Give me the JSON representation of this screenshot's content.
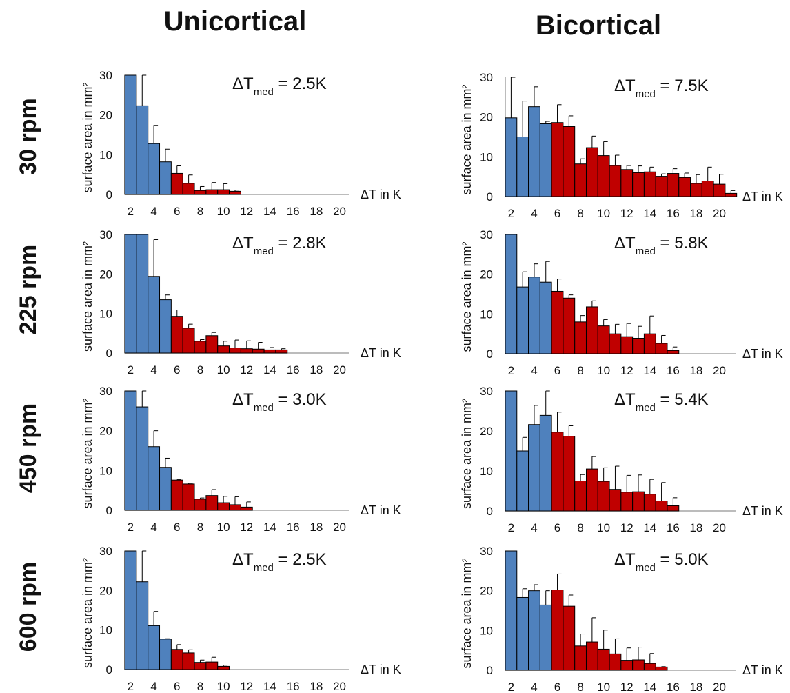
{
  "columns": [
    "Unicortical",
    "Bicortical"
  ],
  "rows": [
    "30 rpm",
    "225 rpm",
    "450 rpm",
    "600 rpm"
  ],
  "colors": {
    "low": "#4f81bd",
    "high": "#c00000",
    "axis": "#a6a6a6",
    "text": "#111111"
  },
  "chart_data": [
    {
      "type": "bar",
      "column": "Unicortical",
      "row": "30 rpm",
      "annotation": {
        "prefix": "ΔT",
        "sub": "med",
        "suffix": " = 2.5K"
      },
      "ylabel": "surface area in mm²",
      "xlabel": "ΔT in K",
      "ylim": [
        0,
        30
      ],
      "yticks": [
        0,
        10,
        20,
        30
      ],
      "xticks": [
        2,
        4,
        6,
        8,
        10,
        12,
        14,
        16,
        18,
        20
      ],
      "x": [
        2,
        3,
        4,
        5,
        6,
        7,
        8,
        9,
        10,
        11
      ],
      "values": [
        30,
        22.3,
        12.8,
        8.2,
        5.3,
        2.8,
        1.0,
        1.2,
        1.2,
        0.8
      ],
      "errors": [
        0,
        8,
        4.5,
        3.2,
        1.9,
        2.1,
        1.0,
        1.8,
        1.5,
        0.3
      ]
    },
    {
      "type": "bar",
      "column": "Bicortical",
      "row": "30 rpm",
      "annotation": {
        "prefix": "ΔT",
        "sub": "med",
        "suffix": " = 7.5K"
      },
      "ylabel": "surface area in mm²",
      "xlabel": "ΔT in K",
      "ylim": [
        0,
        30
      ],
      "yticks": [
        0,
        10,
        20,
        30
      ],
      "xticks": [
        2,
        4,
        6,
        8,
        10,
        12,
        14,
        16,
        18,
        20
      ],
      "x": [
        2,
        3,
        4,
        5,
        6,
        7,
        8,
        9,
        10,
        11,
        12,
        13,
        14,
        15,
        16,
        17,
        18,
        19,
        20,
        21
      ],
      "values": [
        19.8,
        15.0,
        22.6,
        18.3,
        18.6,
        17.6,
        8.2,
        12.3,
        10.3,
        7.8,
        6.8,
        6.0,
        6.2,
        5.1,
        5.8,
        4.8,
        3.3,
        3.9,
        3.1,
        0.8
      ],
      "errors": [
        12,
        9,
        5.0,
        0.6,
        4.5,
        2.7,
        1.3,
        2.9,
        3.5,
        2.6,
        1.0,
        1.7,
        1.2,
        0.6,
        1.2,
        1.1,
        2.2,
        3.5,
        2.5,
        0.7
      ]
    },
    {
      "type": "bar",
      "column": "Unicortical",
      "row": "225 rpm",
      "annotation": {
        "prefix": "ΔT",
        "sub": "med",
        "suffix": " = 2.8K"
      },
      "ylabel": "surface area in mm²",
      "xlabel": "ΔT in K",
      "ylim": [
        0,
        30
      ],
      "yticks": [
        0,
        10,
        20,
        30
      ],
      "xticks": [
        2,
        4,
        6,
        8,
        10,
        12,
        14,
        16,
        18,
        20
      ],
      "x": [
        2,
        3,
        4,
        5,
        6,
        7,
        8,
        9,
        10,
        11,
        12,
        13,
        14,
        15
      ],
      "values": [
        30,
        30,
        19.4,
        13.5,
        9.3,
        6.3,
        3.0,
        4.4,
        1.8,
        1.3,
        1.1,
        1.0,
        0.8,
        0.8
      ],
      "errors": [
        0,
        0,
        9.3,
        1.2,
        1.6,
        1.0,
        0.4,
        0.8,
        1.2,
        2.0,
        2.0,
        1.7,
        0.6,
        0.3
      ]
    },
    {
      "type": "bar",
      "column": "Bicortical",
      "row": "225 rpm",
      "annotation": {
        "prefix": "ΔT",
        "sub": "med",
        "suffix": " = 5.8K"
      },
      "ylabel": "surface area in mm²",
      "xlabel": "ΔT in K",
      "ylim": [
        0,
        30
      ],
      "yticks": [
        0,
        10,
        20,
        30
      ],
      "xticks": [
        2,
        4,
        6,
        8,
        10,
        12,
        14,
        16,
        18,
        20
      ],
      "x": [
        2,
        3,
        4,
        5,
        6,
        7,
        8,
        9,
        10,
        11,
        12,
        13,
        14,
        15,
        16
      ],
      "values": [
        30,
        16.8,
        19.3,
        18.0,
        15.7,
        14.0,
        8.0,
        11.8,
        7.0,
        5.0,
        4.3,
        3.9,
        5.0,
        2.6,
        0.8
      ],
      "errors": [
        0,
        3.8,
        3.3,
        5.2,
        3.1,
        0.8,
        1.6,
        1.5,
        1.6,
        2.4,
        3.3,
        3.0,
        4.5,
        2.0,
        0.9
      ]
    },
    {
      "type": "bar",
      "column": "Unicortical",
      "row": "450 rpm",
      "annotation": {
        "prefix": "ΔT",
        "sub": "med",
        "suffix": " = 3.0K"
      },
      "ylabel": "surface area in mm²",
      "xlabel": "ΔT in K",
      "ylim": [
        0,
        30
      ],
      "yticks": [
        0,
        10,
        20,
        30
      ],
      "xticks": [
        2,
        4,
        6,
        8,
        10,
        12,
        14,
        16,
        18,
        20
      ],
      "x": [
        2,
        3,
        4,
        5,
        6,
        7,
        8,
        9,
        10,
        11,
        12
      ],
      "values": [
        30,
        26.0,
        16.0,
        10.8,
        7.6,
        6.6,
        2.8,
        3.7,
        1.9,
        1.4,
        0.8
      ],
      "errors": [
        0,
        4.5,
        4.0,
        2.3,
        0.1,
        0.2,
        0.3,
        1.5,
        1.6,
        2.0,
        1.3
      ]
    },
    {
      "type": "bar",
      "column": "Bicortical",
      "row": "450 rpm",
      "annotation": {
        "prefix": "ΔT",
        "sub": "med",
        "suffix": " = 5.4K"
      },
      "ylabel": "surface area in mm²",
      "xlabel": "ΔT in K",
      "ylim": [
        0,
        30
      ],
      "yticks": [
        0,
        10,
        20,
        30
      ],
      "xticks": [
        2,
        4,
        6,
        8,
        10,
        12,
        14,
        16,
        18,
        20
      ],
      "x": [
        2,
        3,
        4,
        5,
        6,
        7,
        8,
        9,
        10,
        11,
        12,
        13,
        14,
        15,
        16
      ],
      "values": [
        30,
        15.0,
        21.6,
        23.9,
        19.7,
        18.7,
        7.5,
        10.5,
        7.4,
        5.4,
        4.7,
        4.8,
        4.2,
        2.5,
        1.3
      ],
      "errors": [
        0,
        3.4,
        4.8,
        6.2,
        5.0,
        2.6,
        1.6,
        3.1,
        3.4,
        5.8,
        4.2,
        4.2,
        3.7,
        4.6,
        2.0
      ]
    },
    {
      "type": "bar",
      "column": "Unicortical",
      "row": "600 rpm",
      "annotation": {
        "prefix": "ΔT",
        "sub": "med",
        "suffix": " = 2.5K"
      },
      "ylabel": "surface area in mm²",
      "xlabel": "ΔT in K",
      "ylim": [
        0,
        30
      ],
      "yticks": [
        0,
        10,
        20,
        30
      ],
      "xticks": [
        2,
        4,
        6,
        8,
        10,
        12,
        14,
        16,
        18,
        20
      ],
      "x": [
        2,
        3,
        4,
        5,
        6,
        7,
        8,
        9,
        10
      ],
      "values": [
        30,
        22.2,
        11.1,
        7.7,
        5.1,
        4.2,
        1.8,
        1.9,
        0.8
      ],
      "errors": [
        0,
        8,
        3.6,
        0.1,
        1.2,
        0.8,
        0.6,
        1.2,
        0.3
      ]
    },
    {
      "type": "bar",
      "column": "Bicortical",
      "row": "600 rpm",
      "annotation": {
        "prefix": "ΔT",
        "sub": "med",
        "suffix": " = 5.0K"
      },
      "ylabel": "surface area in mm²",
      "xlabel": "ΔT in K",
      "ylim": [
        0,
        30
      ],
      "yticks": [
        0,
        10,
        20,
        30
      ],
      "xticks": [
        2,
        4,
        6,
        8,
        10,
        12,
        14,
        16,
        18,
        20
      ],
      "x": [
        2,
        3,
        4,
        5,
        6,
        7,
        8,
        9,
        10,
        11,
        12,
        13,
        14,
        15
      ],
      "values": [
        30,
        18.3,
        20.0,
        16.4,
        20.2,
        16.1,
        6.1,
        7.1,
        5.3,
        4.1,
        2.5,
        2.6,
        1.7,
        0.8
      ],
      "errors": [
        0,
        2.2,
        1.5,
        3.6,
        4.0,
        2.8,
        3.0,
        6.1,
        4.8,
        3.8,
        3.1,
        3.2,
        2.5,
        0.1
      ]
    }
  ]
}
